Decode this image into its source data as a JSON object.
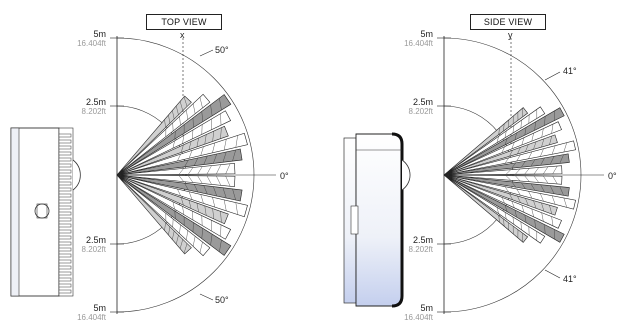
{
  "top_view": {
    "title": "TOP VIEW",
    "axis_label": "x",
    "angle_upper": "50°",
    "angle_lower": "50°",
    "zero_label": "0°",
    "distances": [
      {
        "m": "5m",
        "ft": "16.404ft"
      },
      {
        "m": "2.5m",
        "ft": "8.202ft"
      },
      {
        "m": "2.5m",
        "ft": "8.202ft"
      },
      {
        "m": "5m",
        "ft": "16.404ft"
      }
    ],
    "half_angle_deg": 50
  },
  "side_view": {
    "title": "SIDE VIEW",
    "axis_label": "y",
    "angle_upper": "41°",
    "angle_lower": "41°",
    "zero_label": "0°",
    "distances": [
      {
        "m": "5m",
        "ft": "16.404ft"
      },
      {
        "m": "2.5m",
        "ft": "8.202ft"
      },
      {
        "m": "2.5m",
        "ft": "8.202ft"
      },
      {
        "m": "5m",
        "ft": "16.404ft"
      }
    ],
    "half_angle_deg": 41
  },
  "colors": {
    "line": "#222222",
    "grey_fill": "#9a9a9a",
    "device_tint": "#c9d3ee"
  }
}
